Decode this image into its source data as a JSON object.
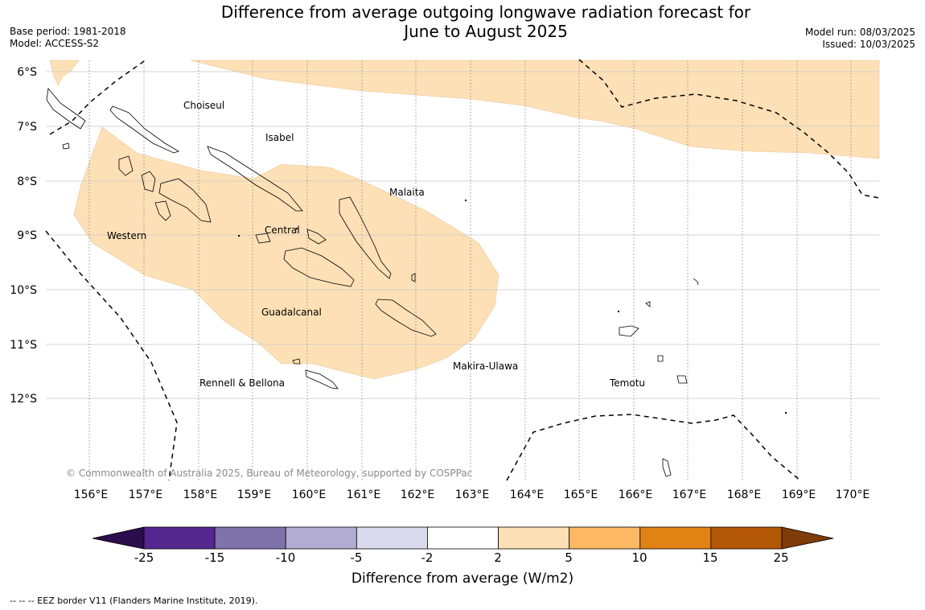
{
  "title": {
    "line1": "Difference from average outgoing longwave radiation forecast for",
    "line2": "June to August 2025"
  },
  "metadata": {
    "base_period": "Base period: 1981-2018",
    "model": "Model: ACCESS-S2",
    "model_run": "Model run: 08/03/2025",
    "issued": "Issued: 10/03/2025"
  },
  "map": {
    "latitude_labels": [
      "6°S",
      "7°S",
      "8°S",
      "9°S",
      "10°S",
      "11°S",
      "12°S"
    ],
    "longitude_labels": [
      "156°E",
      "157°E",
      "158°E",
      "159°E",
      "160°E",
      "161°E",
      "162°E",
      "163°E",
      "164°E",
      "165°E",
      "166°E",
      "167°E",
      "168°E",
      "169°E",
      "170°E"
    ],
    "regions": [
      "Choiseul",
      "Isabel",
      "Malaita",
      "Western",
      "Central",
      "Guadalcanal",
      "Makira-Ulawa",
      "Rennell & Bellona",
      "Temotu"
    ],
    "copyright": "© Commonwealth of Australia 2025, Bureau of Meteorology, supported by COSPPac",
    "anomaly_fill_color": "#fde0b6",
    "ocean_color": "#ffffff"
  },
  "colorbar": {
    "tick_labels": [
      "-25",
      "-15",
      "-10",
      "-5",
      "-2",
      "2",
      "5",
      "10",
      "15",
      "25"
    ],
    "colors": [
      "#2b0c4d",
      "#54278f",
      "#8073ac",
      "#b2abd2",
      "#d8daeb",
      "#ffffff",
      "#fee0b6",
      "#fdb863",
      "#e08214",
      "#b35806",
      "#7f3b08"
    ],
    "label": "Difference from average (W/m2)"
  },
  "footnote": "--  --  -- EEZ border V11 (Flanders Marine Institute, 2019)."
}
